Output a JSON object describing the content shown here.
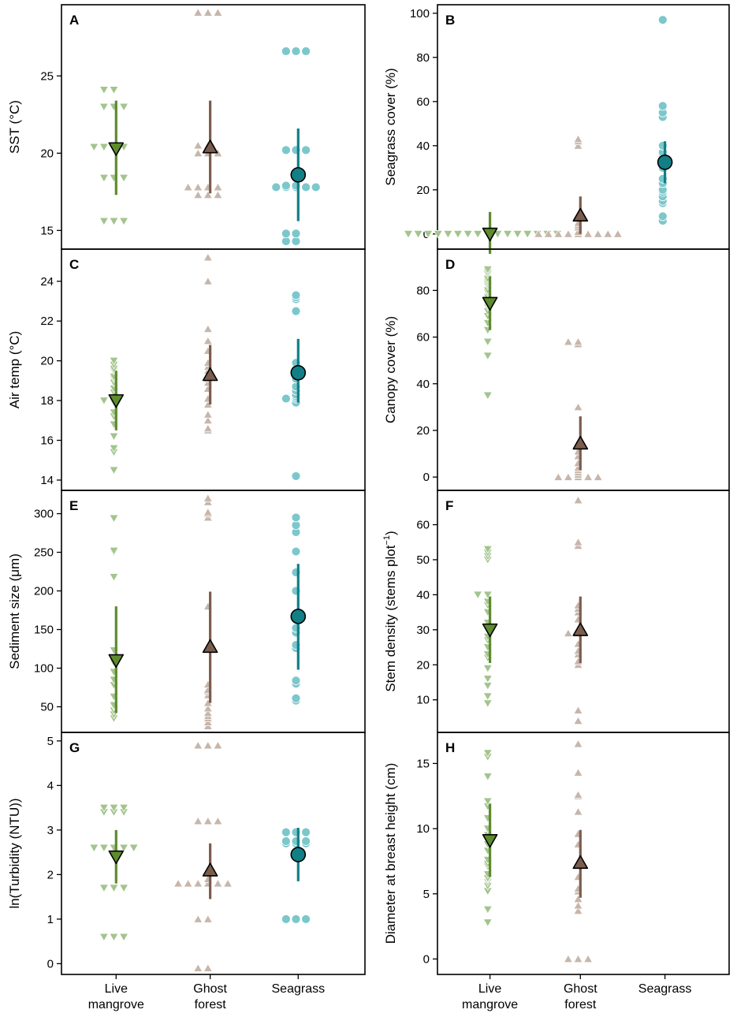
{
  "figure": {
    "x_categories": [
      "Live mangrove",
      "Ghost forest",
      "Seagrass"
    ],
    "x_labels": [
      [
        "Live",
        "mangrove"
      ],
      [
        "Ghost",
        "forest"
      ],
      [
        "Seagrass"
      ]
    ],
    "colors": {
      "mangrove_light": "#a3c48d",
      "mangrove_dark": "#5e8b2e",
      "ghost_light": "#c7b6ab",
      "ghost_dark": "#7b5d4d",
      "seagrass_light": "#7cc7cc",
      "seagrass_dark": "#127f87"
    },
    "markers": {
      "Live mangrove": "triangle-down",
      "Ghost forest": "triangle-up",
      "Seagrass": "circle"
    }
  },
  "chart_data": [
    {
      "panel": "A",
      "type": "scatter",
      "ylabel": "SST (°C)",
      "ylim": [
        14.2,
        29.2
      ],
      "yticks": [
        15,
        20,
        25
      ],
      "series": [
        {
          "name": "Live mangrove",
          "points": [
            15.6,
            15.6,
            15.6,
            18.4,
            18.4,
            18.4,
            20.4,
            20.4,
            20.4,
            20.4,
            23,
            23,
            23,
            24.1,
            24.1
          ],
          "mean": 20.3,
          "ci": [
            17.3,
            23.4
          ]
        },
        {
          "name": "Ghost forest",
          "points": [
            17.3,
            17.3,
            17.3,
            17.8,
            17.8,
            17.8,
            17.8,
            20,
            20,
            20,
            20.5,
            20.5,
            29.1,
            29.1,
            29.1
          ],
          "mean": 20.4,
          "ci": [
            17.4,
            23.4
          ]
        },
        {
          "name": "Seagrass",
          "points": [
            14.3,
            14.3,
            14.8,
            14.8,
            17.8,
            17.8,
            17.8,
            17.8,
            17.8,
            17.9,
            17.9,
            20.2,
            20.2,
            20.2,
            26.6,
            26.6,
            26.6
          ],
          "mean": 18.6,
          "ci": [
            15.6,
            21.6
          ]
        }
      ]
    },
    {
      "panel": "B",
      "type": "scatter",
      "ylabel": "Seagrass cover (%)",
      "ylim": [
        -4,
        101
      ],
      "yticks": [
        0,
        20,
        40,
        60,
        80,
        100
      ],
      "series": [
        {
          "name": "Live mangrove",
          "points": [
            0,
            0,
            0,
            0,
            0,
            0,
            0,
            0,
            0,
            0,
            0,
            0,
            0,
            0,
            0,
            0
          ],
          "mean": 0,
          "ci": [
            -9,
            10
          ]
        },
        {
          "name": "Ghost forest",
          "points": [
            0,
            0,
            0,
            0,
            0,
            0,
            0,
            0,
            0,
            1,
            3,
            4,
            5,
            40,
            42,
            43
          ],
          "mean": 8.5,
          "ci": [
            0,
            17
          ]
        },
        {
          "name": "Seagrass",
          "points": [
            6,
            8,
            14,
            15,
            17,
            19,
            20,
            23,
            25,
            30,
            32,
            33,
            36,
            37,
            40,
            53,
            55,
            58,
            97
          ],
          "mean": 32.5,
          "ci": [
            23,
            42
          ]
        }
      ]
    },
    {
      "panel": "C",
      "type": "scatter",
      "ylabel": "Air temp (°C)",
      "ylim": [
        13.8,
        25.3
      ],
      "yticks": [
        14,
        16,
        18,
        20,
        22,
        24
      ],
      "series": [
        {
          "name": "Live mangrove",
          "points": [
            14.5,
            15.4,
            15.6,
            16.2,
            16.8,
            17.2,
            17.4,
            17.9,
            18,
            18,
            18.1,
            18.4,
            18.6,
            18.9,
            19.1,
            19.2,
            19.5,
            19.6,
            19.8,
            20
          ],
          "mean": 18,
          "ci": [
            16.5,
            19.5
          ]
        },
        {
          "name": "Ghost forest",
          "points": [
            16.5,
            16.6,
            17,
            17.3,
            17.8,
            18.1,
            18.6,
            18.9,
            19.1,
            19.3,
            19.5,
            19.7,
            19.9,
            20.5,
            21,
            21.6,
            24,
            25.2
          ],
          "mean": 19.3,
          "ci": [
            17.8,
            20.8
          ]
        },
        {
          "name": "Seagrass",
          "points": [
            14.2,
            17.9,
            18.1,
            18.1,
            18.2,
            18.3,
            18.5,
            18.7,
            19.1,
            19.3,
            19.5,
            19.6,
            19.9,
            22.5,
            23.1,
            23.2,
            23.3
          ],
          "mean": 19.4,
          "ci": [
            17.9,
            21.1
          ]
        }
      ]
    },
    {
      "panel": "D",
      "type": "scatter",
      "ylabel": "Canopy cover (%)",
      "ylim": [
        -3,
        95
      ],
      "yticks": [
        0,
        20,
        40,
        60,
        80
      ],
      "series": [
        {
          "name": "Live mangrove",
          "points": [
            35,
            52,
            58,
            63,
            66,
            69,
            71,
            73,
            74,
            76,
            77,
            79,
            80,
            82,
            83,
            84,
            85,
            87,
            88,
            89
          ],
          "mean": 74.5,
          "ci": [
            63,
            86
          ]
        },
        {
          "name": "Ghost forest",
          "points": [
            0,
            0,
            0,
            0,
            0,
            1,
            2,
            3,
            4,
            6,
            9,
            11,
            14,
            15,
            30,
            57,
            58,
            58
          ],
          "mean": 14.5,
          "ci": [
            3,
            26
          ]
        }
      ]
    },
    {
      "panel": "E",
      "type": "scatter",
      "ylabel": "Sediment size (μm)",
      "ylim": [
        25,
        322
      ],
      "yticks": [
        50,
        100,
        150,
        200,
        250,
        300
      ],
      "series": [
        {
          "name": "Live mangrove",
          "points": [
            35,
            40,
            45,
            50,
            52,
            63,
            78,
            85,
            95,
            107,
            123,
            218,
            250,
            252,
            294
          ],
          "mean": 110,
          "ci": [
            42,
            180
          ]
        },
        {
          "name": "Ghost forest",
          "points": [
            25,
            30,
            35,
            38,
            42,
            48,
            55,
            65,
            70,
            72,
            79,
            180,
            295,
            300,
            302,
            315,
            320
          ],
          "mean": 128,
          "ci": [
            55,
            199
          ]
        },
        {
          "name": "Seagrass",
          "points": [
            58,
            61,
            80,
            84,
            126,
            130,
            146,
            152,
            200,
            224,
            251,
            276,
            285,
            295
          ],
          "mean": 167,
          "ci": [
            98,
            235
          ]
        }
      ]
    },
    {
      "panel": "F",
      "type": "scatter",
      "ylabel": "Stem density (stems plot⁻¹)",
      "ylim": [
        2.5,
        68
      ],
      "yticks": [
        10,
        20,
        30,
        40,
        50,
        60
      ],
      "series": [
        {
          "name": "Live mangrove",
          "points": [
            9,
            11,
            14,
            16,
            19,
            22,
            23,
            25,
            27,
            28,
            30,
            32,
            35,
            37,
            38,
            40,
            40,
            50,
            51,
            52,
            53
          ],
          "mean": 30,
          "ci": [
            20.5,
            39.5
          ]
        },
        {
          "name": "Ghost forest",
          "points": [
            4,
            7,
            20,
            21,
            23,
            24,
            26,
            29,
            29,
            30,
            33,
            35,
            36,
            37,
            54,
            55,
            67
          ],
          "mean": 30,
          "ci": [
            20.5,
            39.5
          ]
        }
      ]
    },
    {
      "panel": "G",
      "type": "scatter",
      "ylabel": "ln(Turbidity (NTU))",
      "ylim": [
        -0.1,
        5.05
      ],
      "yticks": [
        0,
        1,
        2,
        3,
        4,
        5
      ],
      "series": [
        {
          "name": "Live mangrove",
          "points": [
            0.6,
            0.6,
            0.6,
            1.7,
            1.7,
            1.7,
            2.6,
            2.6,
            2.6,
            2.6,
            2.6,
            3.4,
            3.4,
            3.4,
            3.5,
            3.5,
            3.5
          ],
          "mean": 2.4,
          "ci": [
            1.8,
            3.0
          ]
        },
        {
          "name": "Ghost forest",
          "points": [
            -0.1,
            -0.1,
            1.0,
            1.0,
            1.8,
            1.8,
            1.8,
            1.8,
            1.8,
            1.8,
            1.9,
            3.2,
            3.2,
            3.2,
            4.9,
            4.9,
            4.9
          ],
          "mean": 2.1,
          "ci": [
            1.45,
            2.7
          ]
        },
        {
          "name": "Seagrass",
          "points": [
            1.0,
            1.0,
            1.0,
            2.7,
            2.7,
            2.7,
            2.75,
            2.75,
            2.75,
            2.95,
            2.95,
            2.95
          ],
          "mean": 2.45,
          "ci": [
            1.85,
            3.05
          ]
        }
      ]
    },
    {
      "panel": "H",
      "type": "scatter",
      "ylabel": "Diameter at breast height (cm)",
      "ylim": [
        -0.7,
        16.9
      ],
      "yticks": [
        0,
        5,
        10,
        15
      ],
      "series": [
        {
          "name": "Live mangrove",
          "points": [
            2.8,
            3.8,
            5.2,
            5.6,
            5.9,
            6.1,
            6.2,
            6.5,
            7.1,
            7.3,
            7.6,
            8.3,
            8.8,
            9.5,
            10,
            10.8,
            11.7,
            12.1,
            14,
            15.5,
            15.8
          ],
          "mean": 9.1,
          "ci": [
            6.3,
            11.9
          ]
        },
        {
          "name": "Ghost forest",
          "points": [
            0,
            0,
            0,
            3.7,
            4.1,
            4.6,
            5.2,
            5.4,
            6.3,
            7.4,
            8.8,
            9.6,
            11.3,
            12.5,
            12.6,
            14.3,
            16.5
          ],
          "mean": 7.4,
          "ci": [
            4.7,
            9.9
          ]
        }
      ]
    }
  ]
}
